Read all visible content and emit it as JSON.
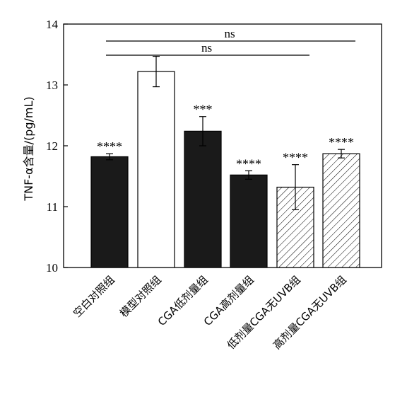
{
  "chart_data": {
    "type": "bar",
    "ylabel": "TNF-α含量/(pg/mL)",
    "xlabel": "",
    "ylim": [
      10,
      14
    ],
    "yticks": [
      10,
      11,
      12,
      13,
      14
    ],
    "grid": false,
    "categories": [
      "空白对照组",
      "模型对照组",
      "CGA低剂量组",
      "CGA高剂量组",
      "低剂量CGA无UVB组",
      "高剂量CGA无UVB组"
    ],
    "values": [
      11.82,
      13.22,
      12.24,
      11.52,
      11.32,
      11.87
    ],
    "error": [
      0.05,
      0.25,
      0.24,
      0.07,
      0.37,
      0.07
    ],
    "fills": [
      "solid",
      "open",
      "solid",
      "solid",
      "hatched",
      "hatched"
    ],
    "significance": [
      "****",
      "",
      "***",
      "****",
      "****",
      "****"
    ],
    "comparisons": [
      {
        "label": "ns",
        "from": 0,
        "to": 5
      },
      {
        "label": "ns",
        "from": 0,
        "to": 4
      }
    ]
  },
  "colors": {
    "solid": "#1a1a1a",
    "open": "#ffffff",
    "stroke": "#000000"
  }
}
